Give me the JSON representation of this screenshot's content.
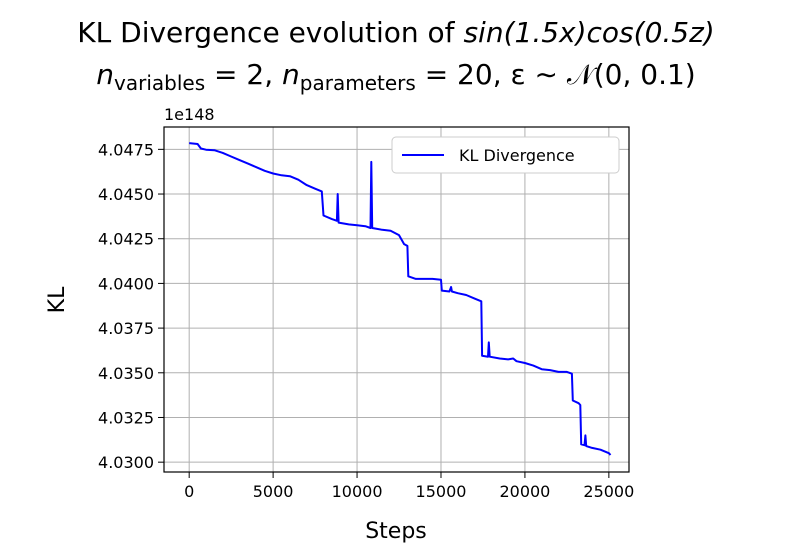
{
  "chart_data": {
    "type": "line",
    "title_line1": {
      "prefix": "KL Divergence evolution of ",
      "expr": "sin",
      "expr_args": "(1.5x)cos(0.5z)"
    },
    "title_line2": {
      "n_variables_sym": "n",
      "n_variables_sub": "variables",
      "n_variables_val": " = 2, ",
      "n_parameters_sym": "n",
      "n_parameters_sub": "parameters",
      "n_parameters_val": " = 20, ",
      "noise": "ε ∼ 𝒩(0, 0.1)"
    },
    "xlabel": "Steps",
    "ylabel": "KL",
    "offset_label": "1e148",
    "xlim": [
      -1500,
      26200
    ],
    "ylim": [
      4.02945,
      4.04875
    ],
    "x_ticks": [
      0,
      5000,
      10000,
      15000,
      20000,
      25000
    ],
    "x_tick_labels": [
      "0",
      "5000",
      "10000",
      "15000",
      "20000",
      "25000"
    ],
    "y_ticks": [
      4.03,
      4.0325,
      4.035,
      4.0375,
      4.04,
      4.0425,
      4.045,
      4.0475
    ],
    "y_tick_labels": [
      "4.0300",
      "4.0325",
      "4.0350",
      "4.0375",
      "4.0400",
      "4.0425",
      "4.0450",
      "4.0475"
    ],
    "grid": true,
    "legend_position": "top-right",
    "series": [
      {
        "name": "KL Divergence",
        "color": "#0000ff",
        "points": [
          [
            0,
            4.04785
          ],
          [
            500,
            4.0478
          ],
          [
            700,
            4.04755
          ],
          [
            1000,
            4.04748
          ],
          [
            1500,
            4.04745
          ],
          [
            2000,
            4.0473
          ],
          [
            2500,
            4.0471
          ],
          [
            3000,
            4.0469
          ],
          [
            3500,
            4.0467
          ],
          [
            4000,
            4.0465
          ],
          [
            4500,
            4.0463
          ],
          [
            5000,
            4.04615
          ],
          [
            5500,
            4.04605
          ],
          [
            6000,
            4.046
          ],
          [
            6500,
            4.0458
          ],
          [
            7000,
            4.0455
          ],
          [
            7500,
            4.0453
          ],
          [
            7900,
            4.04515
          ],
          [
            8000,
            4.0438
          ],
          [
            8500,
            4.0436
          ],
          [
            8800,
            4.0435
          ],
          [
            8850,
            4.045
          ],
          [
            8900,
            4.0434
          ],
          [
            9500,
            4.0433
          ],
          [
            10000,
            4.04325
          ],
          [
            10500,
            4.0432
          ],
          [
            10800,
            4.0431
          ],
          [
            10850,
            4.0468
          ],
          [
            10900,
            4.0431
          ],
          [
            11500,
            4.043
          ],
          [
            12000,
            4.04295
          ],
          [
            12500,
            4.0427
          ],
          [
            12800,
            4.0422
          ],
          [
            13000,
            4.0421
          ],
          [
            13050,
            4.0404
          ],
          [
            13500,
            4.04025
          ],
          [
            14000,
            4.04025
          ],
          [
            14500,
            4.04025
          ],
          [
            15000,
            4.0402
          ],
          [
            15050,
            4.0396
          ],
          [
            15500,
            4.03955
          ],
          [
            15600,
            4.0398
          ],
          [
            15650,
            4.03955
          ],
          [
            16000,
            4.03945
          ],
          [
            16500,
            4.03935
          ],
          [
            17000,
            4.03915
          ],
          [
            17400,
            4.039
          ],
          [
            17450,
            4.03595
          ],
          [
            17800,
            4.0359
          ],
          [
            17850,
            4.0367
          ],
          [
            17900,
            4.0359
          ],
          [
            18500,
            4.0358
          ],
          [
            19000,
            4.03575
          ],
          [
            19300,
            4.0358
          ],
          [
            19500,
            4.03565
          ],
          [
            20000,
            4.03555
          ],
          [
            20500,
            4.0354
          ],
          [
            21000,
            4.0352
          ],
          [
            21500,
            4.03515
          ],
          [
            22000,
            4.03505
          ],
          [
            22500,
            4.03505
          ],
          [
            22800,
            4.03495
          ],
          [
            22850,
            4.03345
          ],
          [
            23200,
            4.0333
          ],
          [
            23300,
            4.0332
          ],
          [
            23350,
            4.031
          ],
          [
            23550,
            4.03095
          ],
          [
            23600,
            4.0315
          ],
          [
            23650,
            4.0309
          ],
          [
            24000,
            4.0308
          ],
          [
            24500,
            4.0307
          ],
          [
            25000,
            4.0305
          ],
          [
            25100,
            4.0304
          ]
        ]
      }
    ]
  }
}
